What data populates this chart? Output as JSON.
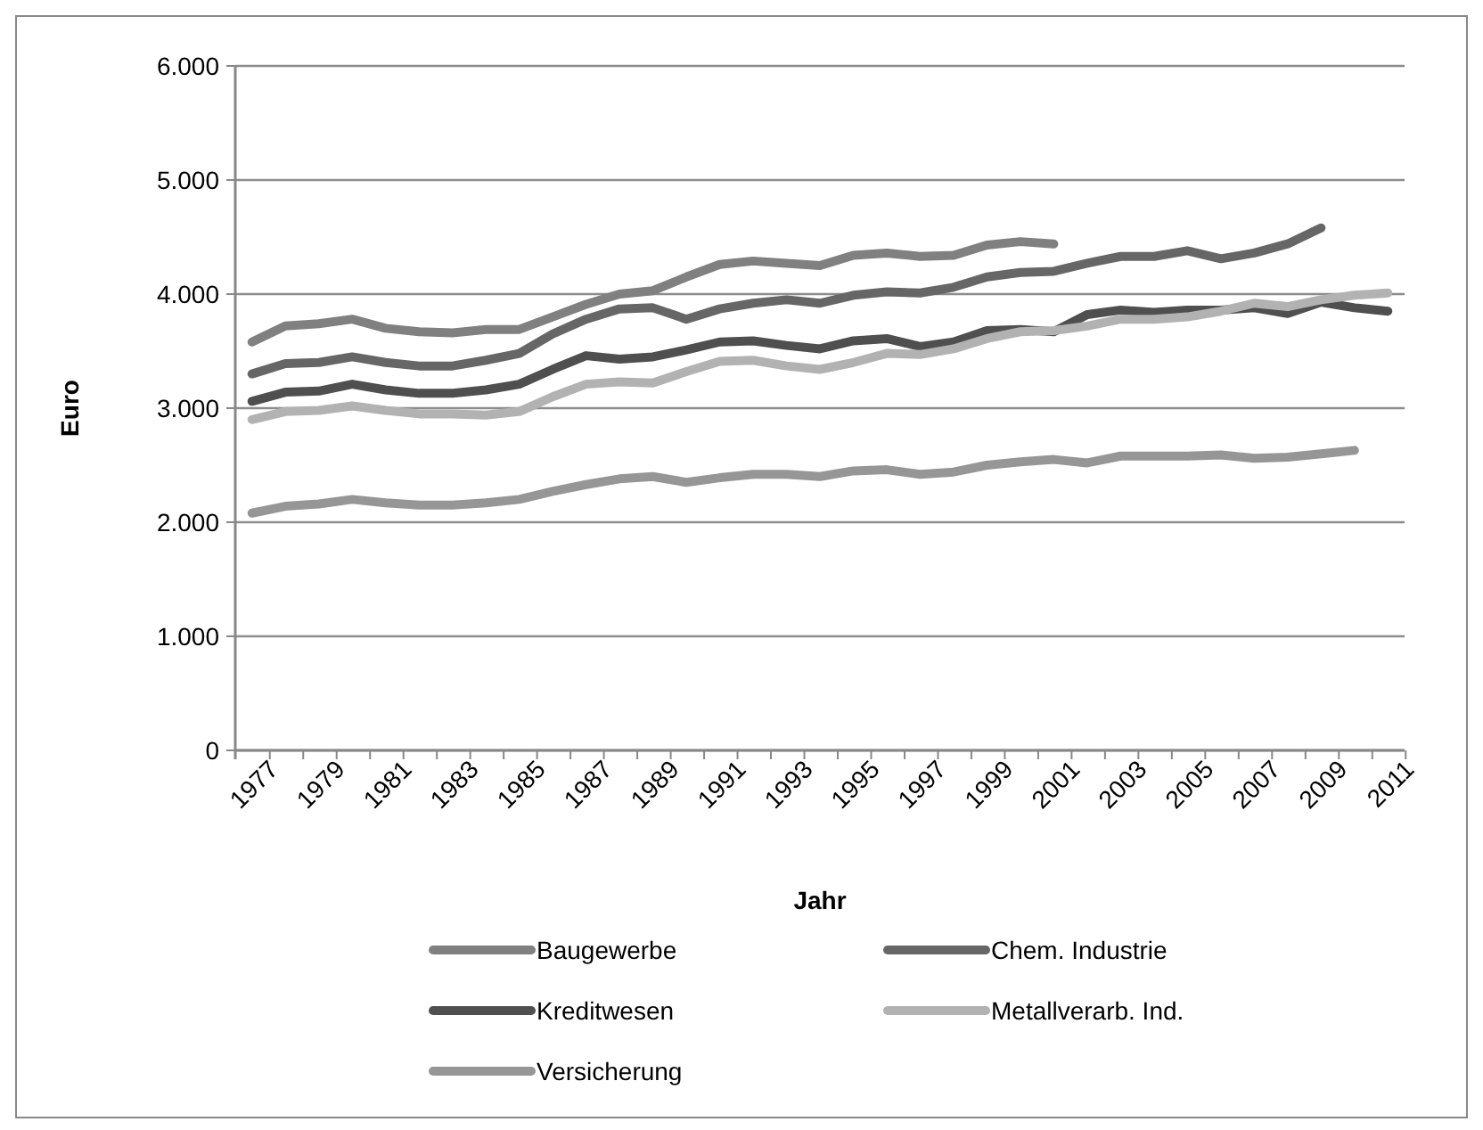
{
  "chart_data": {
    "type": "line",
    "xlabel": "Jahr",
    "ylabel": "Euro",
    "categories": [
      "1977",
      null,
      "1979",
      null,
      "1981",
      null,
      "1983",
      null,
      "1985",
      null,
      "1987",
      null,
      "1989",
      null,
      "1991",
      null,
      "1993",
      null,
      "1995",
      null,
      "1997",
      null,
      "1999",
      null,
      "2001",
      null,
      "2003",
      null,
      "2005",
      null,
      "2007",
      null,
      "2009",
      null,
      "2011"
    ],
    "ylim": [
      0,
      6000
    ],
    "yticks": [
      {
        "value": 0,
        "label": "0"
      },
      {
        "value": 1000,
        "label": "1.000"
      },
      {
        "value": 2000,
        "label": "2.000"
      },
      {
        "value": 3000,
        "label": "3.000"
      },
      {
        "value": 4000,
        "label": "4.000"
      },
      {
        "value": 5000,
        "label": "5.000"
      },
      {
        "value": 6000,
        "label": "6.000"
      }
    ],
    "grid": "y",
    "legend": "bottom",
    "marker": "none",
    "line_style": "solid",
    "series": [
      {
        "name": "Baugewerbe",
        "color": "#808080",
        "values": [
          3580,
          3720,
          3740,
          3780,
          3700,
          3670,
          3660,
          3690,
          3690,
          3800,
          3910,
          4000,
          4030,
          4150,
          4260,
          4290,
          4270,
          4250,
          4340,
          4360,
          4330,
          4340,
          4430,
          4460,
          4440,
          null,
          null,
          null,
          null,
          null,
          null,
          null,
          null,
          null,
          null
        ]
      },
      {
        "name": "Chem. Industrie",
        "color": "#666666",
        "values": [
          3300,
          3390,
          3400,
          3450,
          3400,
          3370,
          3370,
          3420,
          3480,
          3650,
          3780,
          3870,
          3880,
          3780,
          3870,
          3920,
          3950,
          3920,
          3990,
          4020,
          4010,
          4060,
          4150,
          4190,
          4200,
          4270,
          4330,
          4330,
          4380,
          4310,
          4360,
          4440,
          4580,
          null,
          null
        ]
      },
      {
        "name": "Kreditwesen",
        "color": "#4f4f4f",
        "values": [
          3060,
          3140,
          3150,
          3210,
          3160,
          3130,
          3130,
          3160,
          3210,
          3340,
          3460,
          3430,
          3450,
          3510,
          3580,
          3590,
          3550,
          3520,
          3590,
          3610,
          3540,
          3580,
          3680,
          3690,
          3670,
          3820,
          3860,
          3840,
          3860,
          3860,
          3880,
          3830,
          3930,
          3880,
          3850
        ]
      },
      {
        "name": "Metallverarb. Ind.",
        "color": "#b2b2b2",
        "values": [
          2900,
          2970,
          2980,
          3020,
          2980,
          2950,
          2950,
          2940,
          2970,
          3100,
          3210,
          3230,
          3220,
          3320,
          3410,
          3420,
          3370,
          3340,
          3400,
          3480,
          3470,
          3520,
          3610,
          3670,
          3680,
          3720,
          3780,
          3780,
          3800,
          3850,
          3920,
          3890,
          3950,
          3990,
          4010
        ]
      },
      {
        "name": "Versicherung",
        "color": "#969696",
        "values": [
          2080,
          2140,
          2160,
          2200,
          2170,
          2150,
          2150,
          2170,
          2200,
          2270,
          2330,
          2380,
          2400,
          2350,
          2390,
          2420,
          2420,
          2400,
          2450,
          2460,
          2420,
          2440,
          2500,
          2530,
          2550,
          2520,
          2580,
          2580,
          2580,
          2590,
          2560,
          2570,
          2600,
          2630,
          null
        ]
      }
    ]
  }
}
